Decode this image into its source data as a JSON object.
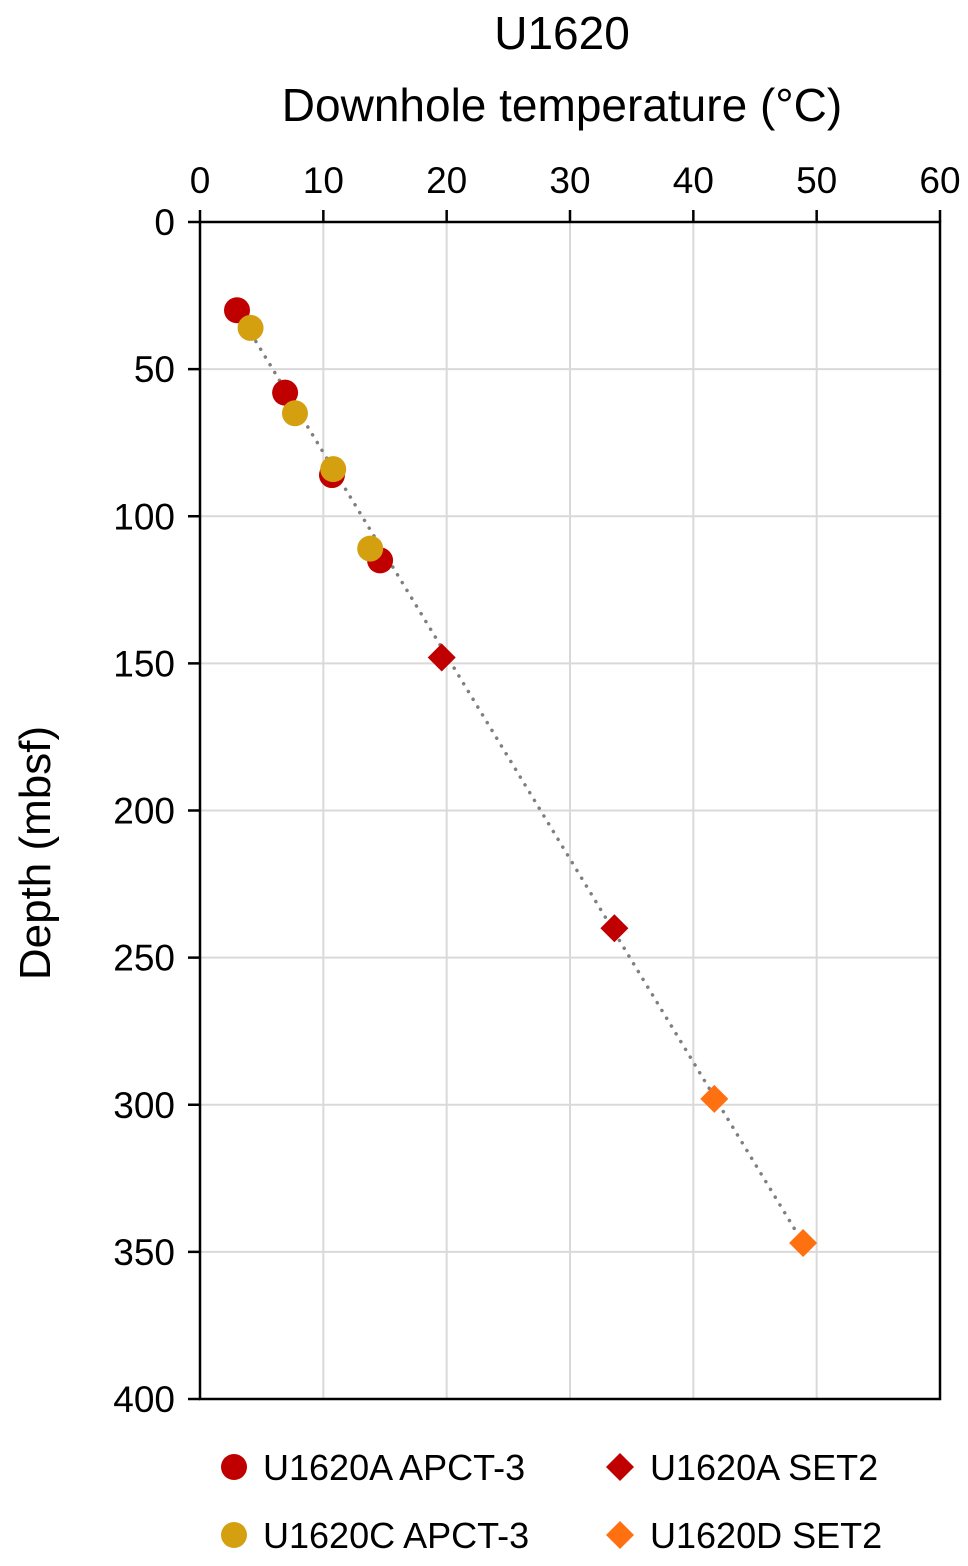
{
  "chart_data": {
    "type": "scatter",
    "title": "U1620",
    "xlabel": "Downhole temperature (°C)",
    "ylabel": "Depth (mbsf)",
    "xlim": [
      0,
      60
    ],
    "ylim": [
      0,
      400
    ],
    "y_inverted": true,
    "x_axis_position": "top",
    "x_ticks": [
      "0",
      "10",
      "20",
      "30",
      "40",
      "50",
      "60"
    ],
    "y_ticks": [
      "0",
      "50",
      "100",
      "150",
      "200",
      "250",
      "300",
      "350",
      "400"
    ],
    "grid": true,
    "legend_position": "bottom",
    "series": [
      {
        "name": "U1620A APCT-3",
        "marker": "circle",
        "color": "#c00000",
        "points": [
          {
            "x": 3.0,
            "y": 30
          },
          {
            "x": 6.9,
            "y": 58
          },
          {
            "x": 10.7,
            "y": 86
          },
          {
            "x": 14.6,
            "y": 115
          }
        ]
      },
      {
        "name": "U1620C APCT-3",
        "marker": "circle",
        "color": "#d4a010",
        "points": [
          {
            "x": 4.1,
            "y": 36
          },
          {
            "x": 7.7,
            "y": 65
          },
          {
            "x": 10.8,
            "y": 84
          },
          {
            "x": 13.8,
            "y": 111
          }
        ]
      },
      {
        "name": "U1620A SET2",
        "marker": "diamond",
        "color": "#c00000",
        "points": [
          {
            "x": 19.6,
            "y": 148
          },
          {
            "x": 33.6,
            "y": 240
          }
        ]
      },
      {
        "name": "U1620D SET2",
        "marker": "diamond",
        "color": "#ff7010",
        "points": [
          {
            "x": 41.7,
            "y": 298
          },
          {
            "x": 48.9,
            "y": 347
          }
        ]
      }
    ],
    "trendline": {
      "style": "dotted",
      "color": "#7f7f7f",
      "from": {
        "x": 3.0,
        "y": 30
      },
      "to": {
        "x": 48.9,
        "y": 347
      }
    }
  }
}
